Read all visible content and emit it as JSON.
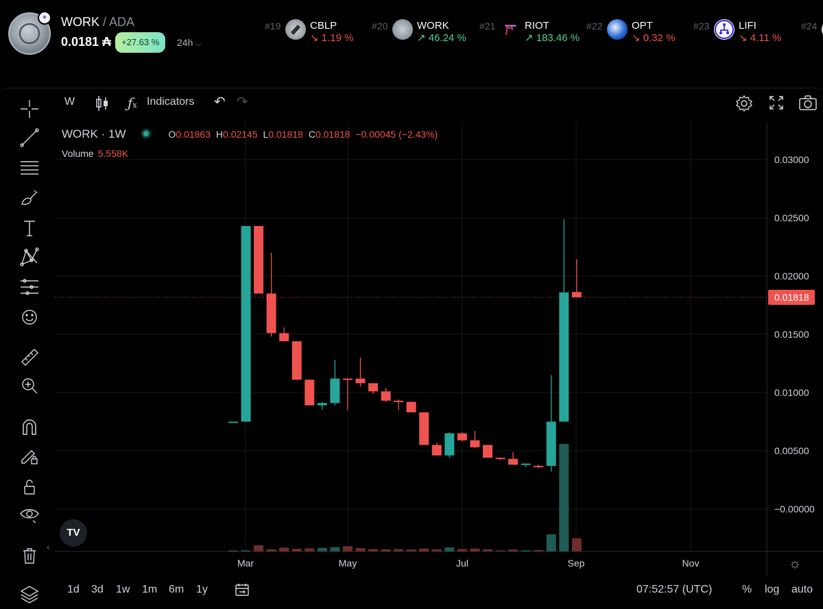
{
  "header": {
    "base": "WORK",
    "quote": "ADA",
    "price": "0.0181 ₳",
    "change": "+27.63 %",
    "timeframe": "24h"
  },
  "ticker": [
    {
      "rank": "#19",
      "symbol": "CBLP",
      "change": "↘ 1.19 %",
      "direction": "down",
      "icon": "cblp-icon"
    },
    {
      "rank": "#20",
      "symbol": "WORK",
      "change": "↗ 46.24 %",
      "direction": "up",
      "icon": "work-icon"
    },
    {
      "rank": "#21",
      "symbol": "RIOT",
      "change": "↗ 183.46 %",
      "direction": "up",
      "icon": "riot-icon"
    },
    {
      "rank": "#22",
      "symbol": "OPT",
      "change": "↘ 0.32 %",
      "direction": "down",
      "icon": "opt-icon"
    },
    {
      "rank": "#23",
      "symbol": "LIFI",
      "change": "↘ 4.11 %",
      "direction": "down",
      "icon": "lifi-icon"
    },
    {
      "rank": "#24",
      "symbol": "",
      "change": "",
      "direction": "down",
      "icon": "next-token-icon"
    }
  ],
  "toolbar": {
    "interval": "W",
    "indicators": "Indicators"
  },
  "legend": {
    "symbol": "WORK · 1W",
    "o_label": "O",
    "o": "0.01863",
    "h_label": "H",
    "h": "0.02145",
    "l_label": "L",
    "l": "0.01818",
    "c_label": "C",
    "c": "0.01818",
    "change": "−0.00045 (−2.43%)",
    "volume_label": "Volume",
    "volume": "5.558K"
  },
  "price_axis": {
    "ticks": [
      "0.03000",
      "0.02500",
      "0.02000",
      "0.01500",
      "0.01000",
      "0.00500",
      "−0.00000"
    ],
    "current": "0.01818"
  },
  "time_axis": {
    "ticks": [
      "Mar",
      "May",
      "Jul",
      "Sep",
      "Nov"
    ]
  },
  "bottom_bar": {
    "ranges": [
      "1d",
      "3d",
      "1w",
      "1m",
      "6m",
      "1y"
    ],
    "clock": "07:52:57 (UTC)",
    "percent": "%",
    "log": "log",
    "auto": "auto"
  },
  "watermark": "TV",
  "colors": {
    "up": "#26a69a",
    "down": "#ef5350",
    "volume_up": "#1f5c55",
    "volume_down": "#6e2d2d",
    "badge_green": "#8fe6b0"
  },
  "chart_data": {
    "type": "candlestick",
    "interval": "1W",
    "ylim": [
      -0.002,
      0.032
    ],
    "price_ticks": [
      0.03,
      0.025,
      0.02,
      0.015,
      0.01,
      0.005,
      0.0
    ],
    "x_ticks": [
      "Mar",
      "May",
      "Jul",
      "Sep",
      "Nov"
    ],
    "candles": [
      {
        "o": 0.0075,
        "h": 0.0075,
        "l": 0.0074,
        "c": 0.0075,
        "v": 0.3
      },
      {
        "o": 0.0075,
        "h": 0.0243,
        "l": 0.0075,
        "c": 0.0243,
        "v": 0.3
      },
      {
        "o": 0.0243,
        "h": 0.0243,
        "l": 0.0185,
        "c": 0.0185,
        "v": 2.6
      },
      {
        "o": 0.0185,
        "h": 0.022,
        "l": 0.0148,
        "c": 0.0151,
        "v": 0.9
      },
      {
        "o": 0.0151,
        "h": 0.0156,
        "l": 0.0144,
        "c": 0.0144,
        "v": 1.6
      },
      {
        "o": 0.0144,
        "h": 0.0144,
        "l": 0.0111,
        "c": 0.0111,
        "v": 1.1
      },
      {
        "o": 0.0111,
        "h": 0.0111,
        "l": 0.0089,
        "c": 0.0089,
        "v": 1.3
      },
      {
        "o": 0.0089,
        "h": 0.0092,
        "l": 0.0085,
        "c": 0.0091,
        "v": 1.5
      },
      {
        "o": 0.0091,
        "h": 0.0128,
        "l": 0.0089,
        "c": 0.0112,
        "v": 1.8
      },
      {
        "o": 0.0112,
        "h": 0.0112,
        "l": 0.0085,
        "c": 0.0111,
        "v": 2.2
      },
      {
        "o": 0.0112,
        "h": 0.013,
        "l": 0.0105,
        "c": 0.0108,
        "v": 1.4
      },
      {
        "o": 0.0108,
        "h": 0.0108,
        "l": 0.0099,
        "c": 0.0101,
        "v": 1.0
      },
      {
        "o": 0.0101,
        "h": 0.0104,
        "l": 0.0092,
        "c": 0.0093,
        "v": 0.9
      },
      {
        "o": 0.0093,
        "h": 0.0094,
        "l": 0.0085,
        "c": 0.0092,
        "v": 1.0
      },
      {
        "o": 0.0092,
        "h": 0.0092,
        "l": 0.0083,
        "c": 0.0083,
        "v": 0.8
      },
      {
        "o": 0.0083,
        "h": 0.0083,
        "l": 0.0055,
        "c": 0.0055,
        "v": 1.2
      },
      {
        "o": 0.0055,
        "h": 0.0057,
        "l": 0.0046,
        "c": 0.0046,
        "v": 0.9
      },
      {
        "o": 0.0046,
        "h": 0.0066,
        "l": 0.0044,
        "c": 0.0065,
        "v": 1.7
      },
      {
        "o": 0.0065,
        "h": 0.0066,
        "l": 0.0058,
        "c": 0.0059,
        "v": 1.0
      },
      {
        "o": 0.0059,
        "h": 0.0067,
        "l": 0.0052,
        "c": 0.0053,
        "v": 1.2
      },
      {
        "o": 0.0055,
        "h": 0.0055,
        "l": 0.0044,
        "c": 0.0044,
        "v": 0.9
      },
      {
        "o": 0.0044,
        "h": 0.0044,
        "l": 0.0042,
        "c": 0.0043,
        "v": 0.4
      },
      {
        "o": 0.0043,
        "h": 0.0049,
        "l": 0.0039,
        "c": 0.0038,
        "v": 0.8
      },
      {
        "o": 0.0038,
        "h": 0.0039,
        "l": 0.0036,
        "c": 0.0039,
        "v": 0.3
      },
      {
        "o": 0.0037,
        "h": 0.0038,
        "l": 0.0035,
        "c": 0.0036,
        "v": 0.6
      },
      {
        "o": 0.0037,
        "h": 0.0115,
        "l": 0.0032,
        "c": 0.0075,
        "v": 7.2
      },
      {
        "o": 0.0075,
        "h": 0.0249,
        "l": 0.0075,
        "c": 0.0186,
        "v": 45.0
      },
      {
        "o": 0.01863,
        "h": 0.02145,
        "l": 0.01818,
        "c": 0.01818,
        "v": 5.558
      }
    ]
  }
}
